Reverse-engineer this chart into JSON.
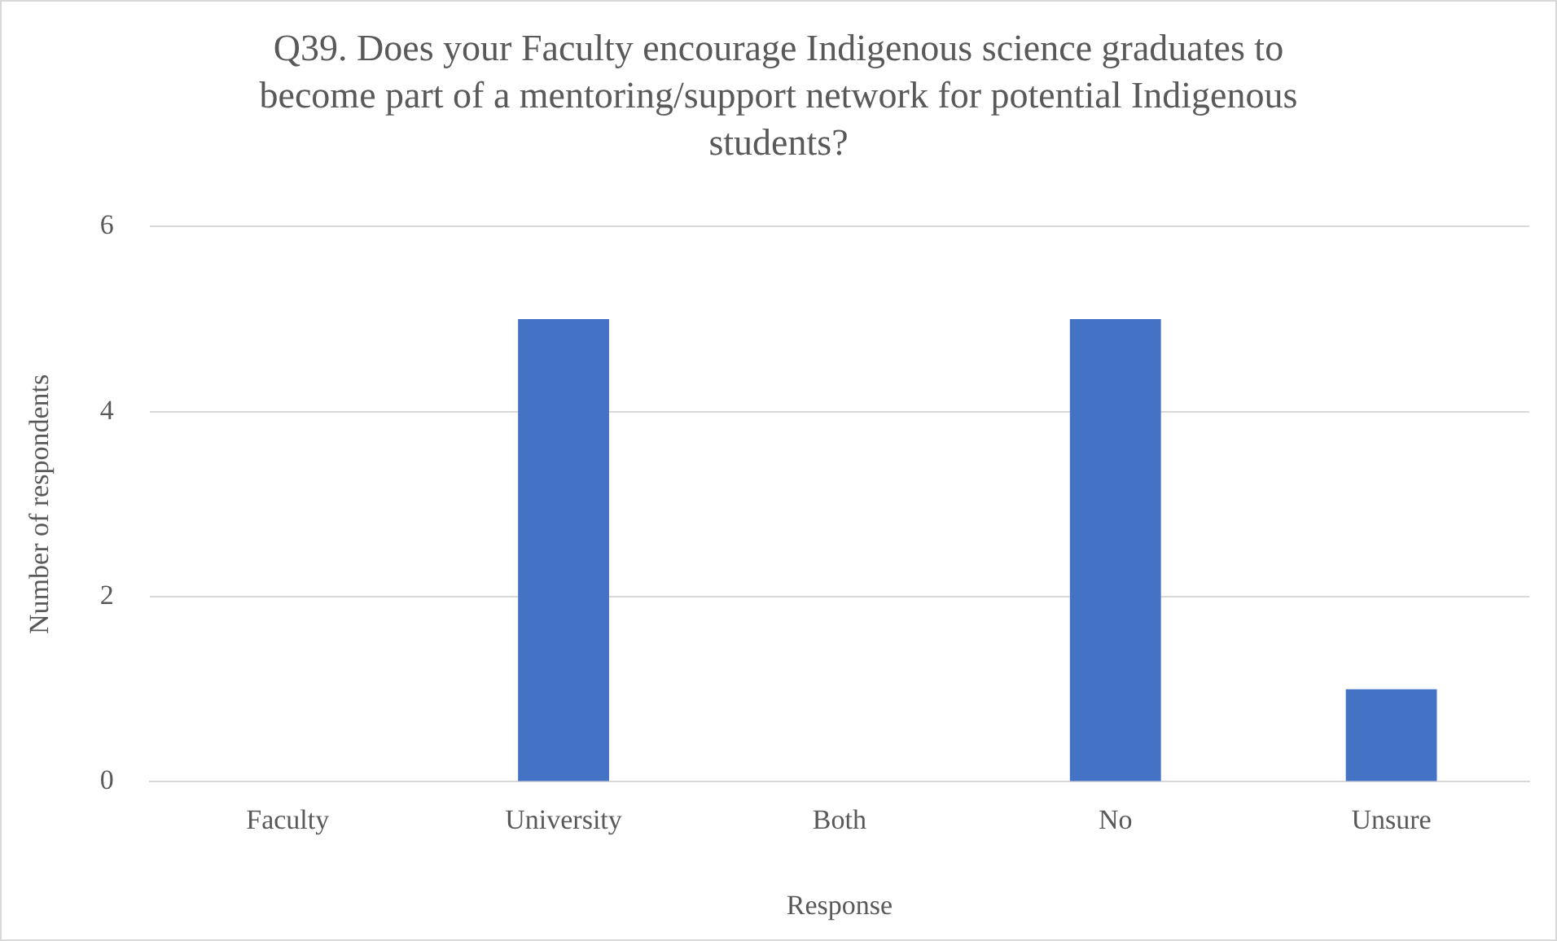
{
  "chart_data": {
    "type": "bar",
    "title": "Q39. Does your Faculty encourage Indigenous science graduates to become part of a mentoring/support network for potential Indigenous students?",
    "xlabel": "Response",
    "ylabel": "Number of respondents",
    "categories": [
      "Faculty",
      "University",
      "Both",
      "No",
      "Unsure"
    ],
    "values": [
      0,
      5,
      0,
      5,
      1
    ],
    "color": "#4472c4",
    "ylim": [
      0,
      6
    ],
    "yticks": [
      0,
      2,
      4,
      6
    ],
    "grid": "y"
  }
}
